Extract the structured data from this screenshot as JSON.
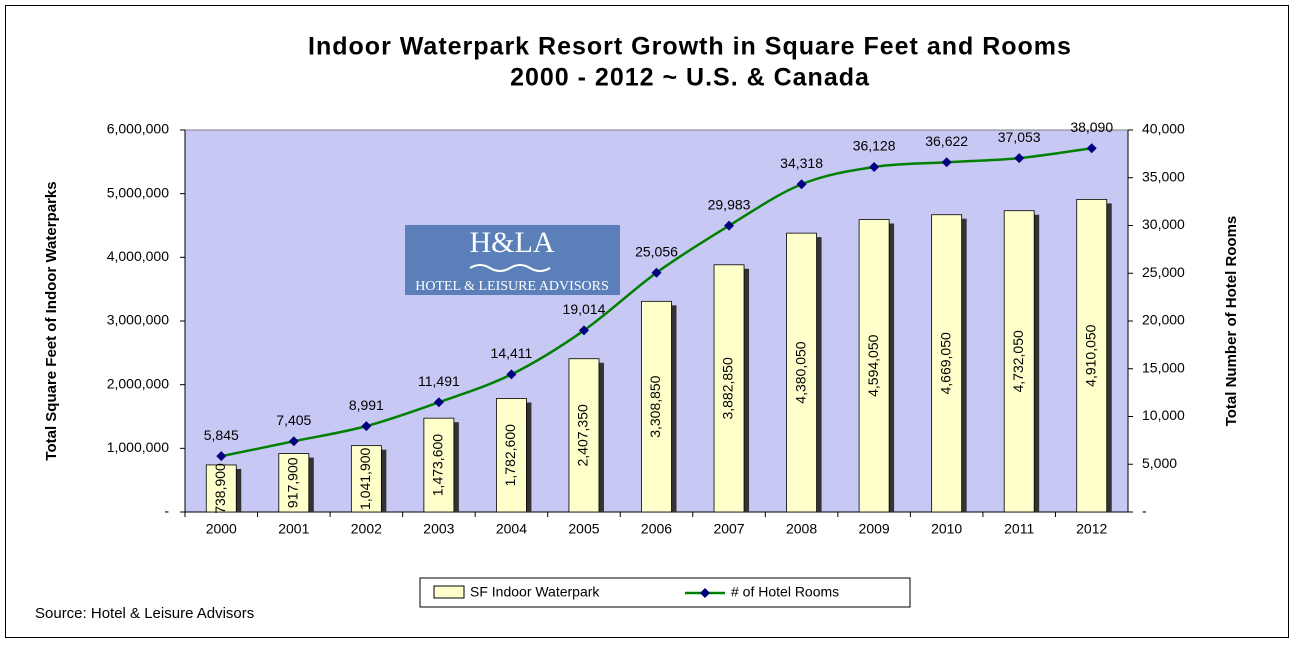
{
  "chart_data": {
    "type": "bar-line",
    "title": "Indoor Waterpark Resort Growth in Square Feet and Rooms",
    "subtitle": "2000 - 2012   ~   U.S. & Canada",
    "y_label": "Total Square Feet of Indoor Waterparks",
    "y2_label": "Total Number of Hotel Rooms",
    "source": "Source: Hotel & Leisure Advisors",
    "logo": {
      "title": "H&LA",
      "subtitle": "HOTEL & LEISURE ADVISORS"
    },
    "categories": [
      "2000",
      "2001",
      "2002",
      "2003",
      "2004",
      "2005",
      "2006",
      "2007",
      "2008",
      "2009",
      "2010",
      "2011",
      "2012"
    ],
    "series": [
      {
        "name": "SF Indoor Waterpark",
        "type": "bar",
        "color": "#ffffcc",
        "values": [
          738900,
          917900,
          1041900,
          1473600,
          1782600,
          2407350,
          3308850,
          3882850,
          4380050,
          4594050,
          4669050,
          4732050,
          4910050
        ],
        "value_labels": [
          "738,900",
          "917,900",
          "1,041,900",
          "1,473,600",
          "1,782,600",
          "2,407,350",
          "3,308,850",
          "3,882,850",
          "4,380,050",
          "4,594,050",
          "4,669,050",
          "4,732,050",
          "4,910,050"
        ]
      },
      {
        "name": "# of Hotel Rooms",
        "type": "line",
        "color": "#008000",
        "marker_color": "#000080",
        "axis": "y2",
        "values": [
          5845,
          7405,
          8991,
          11491,
          14411,
          19014,
          25056,
          29983,
          34318,
          36128,
          36622,
          37053,
          38090
        ],
        "value_labels": [
          "5,845",
          "7,405",
          "8,991",
          "11,491",
          "14,411",
          "19,014",
          "25,056",
          "29,983",
          "34,318",
          "36,128",
          "36,622",
          "37,053",
          "38,090"
        ]
      }
    ],
    "ylim": [
      0,
      6000000
    ],
    "yticks": [
      {
        "value": 0,
        "label": "-"
      },
      {
        "value": 1000000,
        "label": "1,000,000"
      },
      {
        "value": 2000000,
        "label": "2,000,000"
      },
      {
        "value": 3000000,
        "label": "3,000,000"
      },
      {
        "value": 4000000,
        "label": "4,000,000"
      },
      {
        "value": 5000000,
        "label": "5,000,000"
      },
      {
        "value": 6000000,
        "label": "6,000,000"
      }
    ],
    "y2lim": [
      0,
      40000
    ],
    "y2ticks": [
      {
        "value": 0,
        "label": "-"
      },
      {
        "value": 5000,
        "label": "5,000"
      },
      {
        "value": 10000,
        "label": "10,000"
      },
      {
        "value": 15000,
        "label": "15,000"
      },
      {
        "value": 20000,
        "label": "20,000"
      },
      {
        "value": 25000,
        "label": "25,000"
      },
      {
        "value": 30000,
        "label": "30,000"
      },
      {
        "value": 35000,
        "label": "35,000"
      },
      {
        "value": 40000,
        "label": "40,000"
      }
    ],
    "plot_background": "#c8c8f4",
    "legend": "bottom"
  }
}
